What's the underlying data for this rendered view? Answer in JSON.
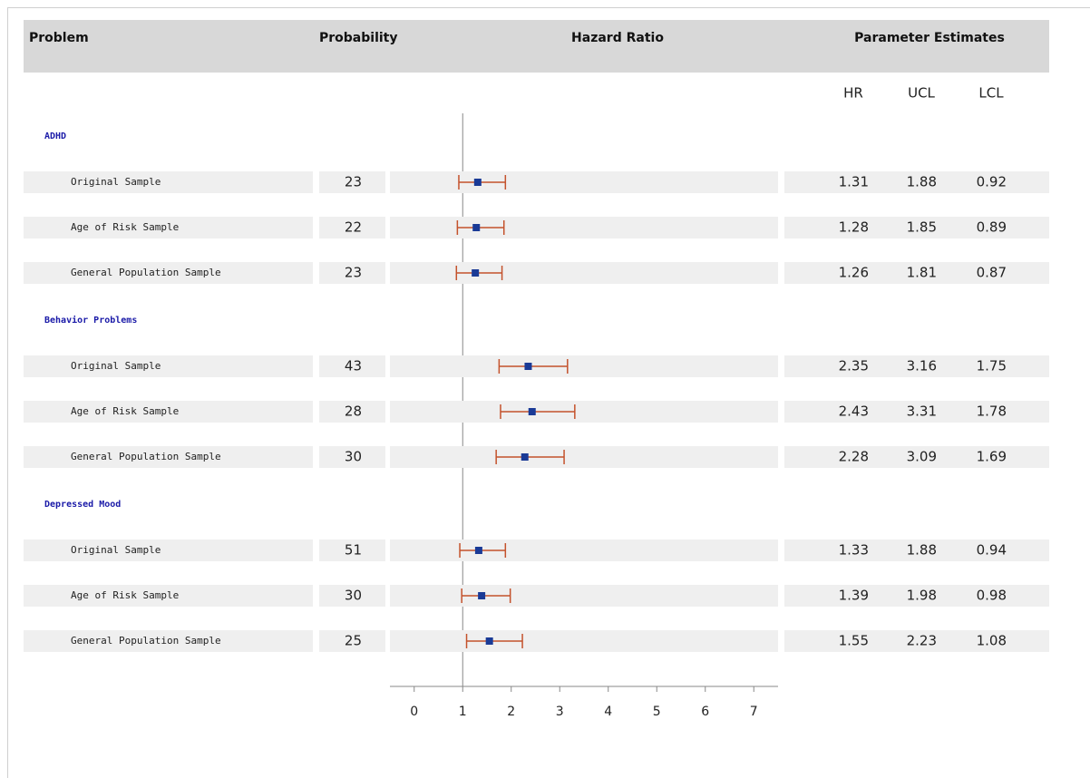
{
  "chart_data": {
    "type": "forest",
    "columns": [
      "Problem",
      "Probability",
      "Hazard Ratio",
      "Parameter Estimates"
    ],
    "estimate_columns": [
      "HR",
      "UCL",
      "LCL"
    ],
    "groups": [
      {
        "name": "ADHD",
        "rows": [
          {
            "label": "Original Sample",
            "probability": 23,
            "hr": 1.31,
            "ucl": 1.88,
            "lcl": 0.92
          },
          {
            "label": "Age of Risk Sample",
            "probability": 22,
            "hr": 1.28,
            "ucl": 1.85,
            "lcl": 0.89
          },
          {
            "label": "General Population Sample",
            "probability": 23,
            "hr": 1.26,
            "ucl": 1.81,
            "lcl": 0.87
          }
        ]
      },
      {
        "name": "Behavior Problems",
        "rows": [
          {
            "label": "Original Sample",
            "probability": 43,
            "hr": 2.35,
            "ucl": 3.16,
            "lcl": 1.75
          },
          {
            "label": "Age of Risk Sample",
            "probability": 28,
            "hr": 2.43,
            "ucl": 3.31,
            "lcl": 1.78
          },
          {
            "label": "General Population Sample",
            "probability": 30,
            "hr": 2.28,
            "ucl": 3.09,
            "lcl": 1.69
          }
        ]
      },
      {
        "name": "Depressed Mood",
        "rows": [
          {
            "label": "Original Sample",
            "probability": 51,
            "hr": 1.33,
            "ucl": 1.88,
            "lcl": 0.94
          },
          {
            "label": "Age of Risk Sample",
            "probability": 30,
            "hr": 1.39,
            "ucl": 1.98,
            "lcl": 0.98
          },
          {
            "label": "General Population Sample",
            "probability": 25,
            "hr": 1.55,
            "ucl": 2.23,
            "lcl": 1.08
          }
        ]
      }
    ],
    "xlim": [
      -0.5,
      7.5
    ],
    "xticks": [
      0,
      1,
      2,
      3,
      4,
      5,
      6,
      7
    ],
    "reference_line": 1,
    "marker_color": "#1a3a96",
    "ci_color": "#c4522c"
  }
}
